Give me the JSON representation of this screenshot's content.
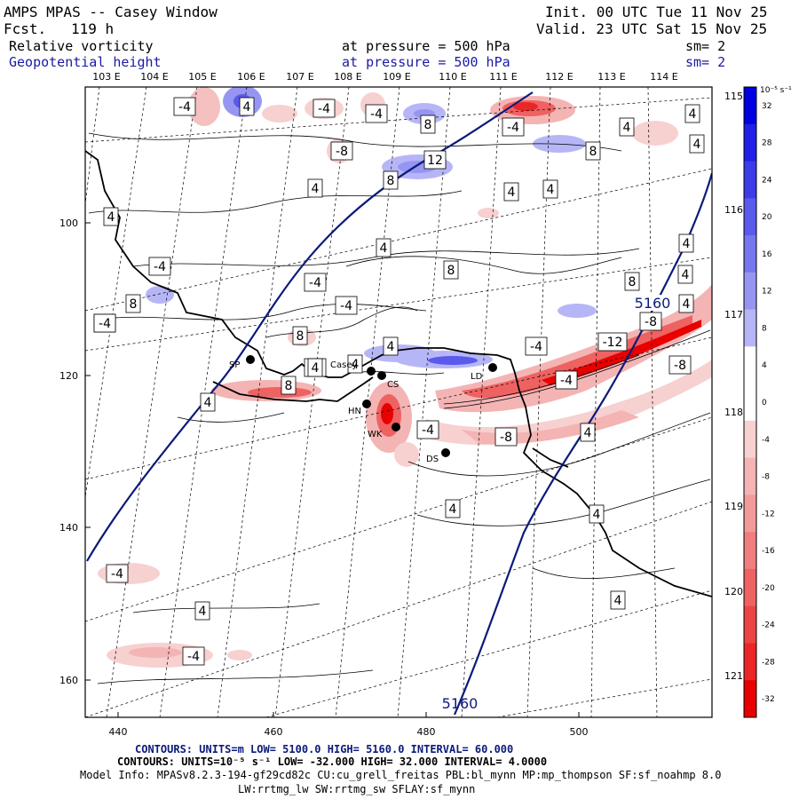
{
  "header": {
    "model": "AMPS MPAS -- Casey Window",
    "forecast_label": "Fcst.",
    "forecast_value": "119 h",
    "init": "Init. 00 UTC Tue 11 Nov 25",
    "valid": "Valid. 23 UTC Sat 15 Nov 25",
    "field1": "Relative vorticity",
    "field2": "Geopotential height",
    "pressure1": "at pressure =  500 hPa",
    "pressure2": "at pressure =  500 hPa",
    "sm1": "sm= 2",
    "sm2": "sm= 2"
  },
  "map": {
    "lon_labels_top": [
      "103 E",
      "104 E",
      "105 E",
      "106 E",
      "107 E",
      "108 E",
      "109 E",
      "110 E",
      "111 E",
      "112 E",
      "113 E",
      "114 E"
    ],
    "lon_labels_right": [
      "115 E",
      "116 E",
      "117 E",
      "118 E",
      "119 E",
      "120 E",
      "121 E"
    ],
    "y_ticks": [
      "100",
      "120",
      "140",
      "160"
    ],
    "x_ticks": [
      "440",
      "460",
      "480",
      "500"
    ],
    "stations": [
      "SP",
      "Casey",
      "CS",
      "LD",
      "HN",
      "WK",
      "DS"
    ],
    "height_contour_labels": [
      "5160",
      "5160"
    ],
    "vort_labels": [
      "-4",
      "4",
      "-4",
      "-4",
      "8",
      "-4",
      "4",
      "4",
      "-8",
      "8",
      "12",
      "4",
      "8",
      "4",
      "4",
      "4",
      "4",
      "-4",
      "4",
      "8",
      "-4",
      "8",
      "8",
      "4",
      "4",
      "-8",
      "-4",
      "8",
      "-4",
      "4",
      "-4",
      "-12",
      "-8",
      "-8",
      "8",
      "4",
      "-4",
      "-4",
      "4",
      "-8",
      "4",
      "4",
      "4",
      "4",
      "4",
      "-4",
      "-4",
      "-4",
      "4",
      "4"
    ]
  },
  "colorbar": {
    "units": "10⁻⁵ s⁻¹",
    "labels": [
      "32",
      "28",
      "24",
      "20",
      "16",
      "12",
      "8",
      "4",
      "0",
      "-4",
      "-8",
      "-12",
      "-16",
      "-20",
      "-24",
      "-28",
      "-32"
    ],
    "colors": [
      "#0000e0",
      "#2020e6",
      "#3c3ce8",
      "#5a5aec",
      "#7676ef",
      "#9696f2",
      "#b6b6f6",
      "#ffffff",
      "#ffffff",
      "#f7d0d0",
      "#f4b4b4",
      "#f29a9a",
      "#f07e7e",
      "#ee6262",
      "#ec4444",
      "#ea2626",
      "#e80000"
    ]
  },
  "footer": {
    "line1": "CONTOURS:  UNITS=m  LOW=  5100.0      HIGH=  5160.0       INTERVAL=   60.000",
    "line2": "CONTOURS:  UNITS=10⁻⁵ s⁻¹  LOW=  -32.000      HIGH=  32.000       INTERVAL=   4.0000",
    "line3": "Model Info: MPASv8.2.3-194-gf29cd82c CU:cu_grell_freitas PBL:bl_mynn MP:mp_thompson SF:sf_noahmp 8.0",
    "line4": "LW:rrtmg_lw SW:rrtmg_sw SFLAY:sf_mynn"
  }
}
